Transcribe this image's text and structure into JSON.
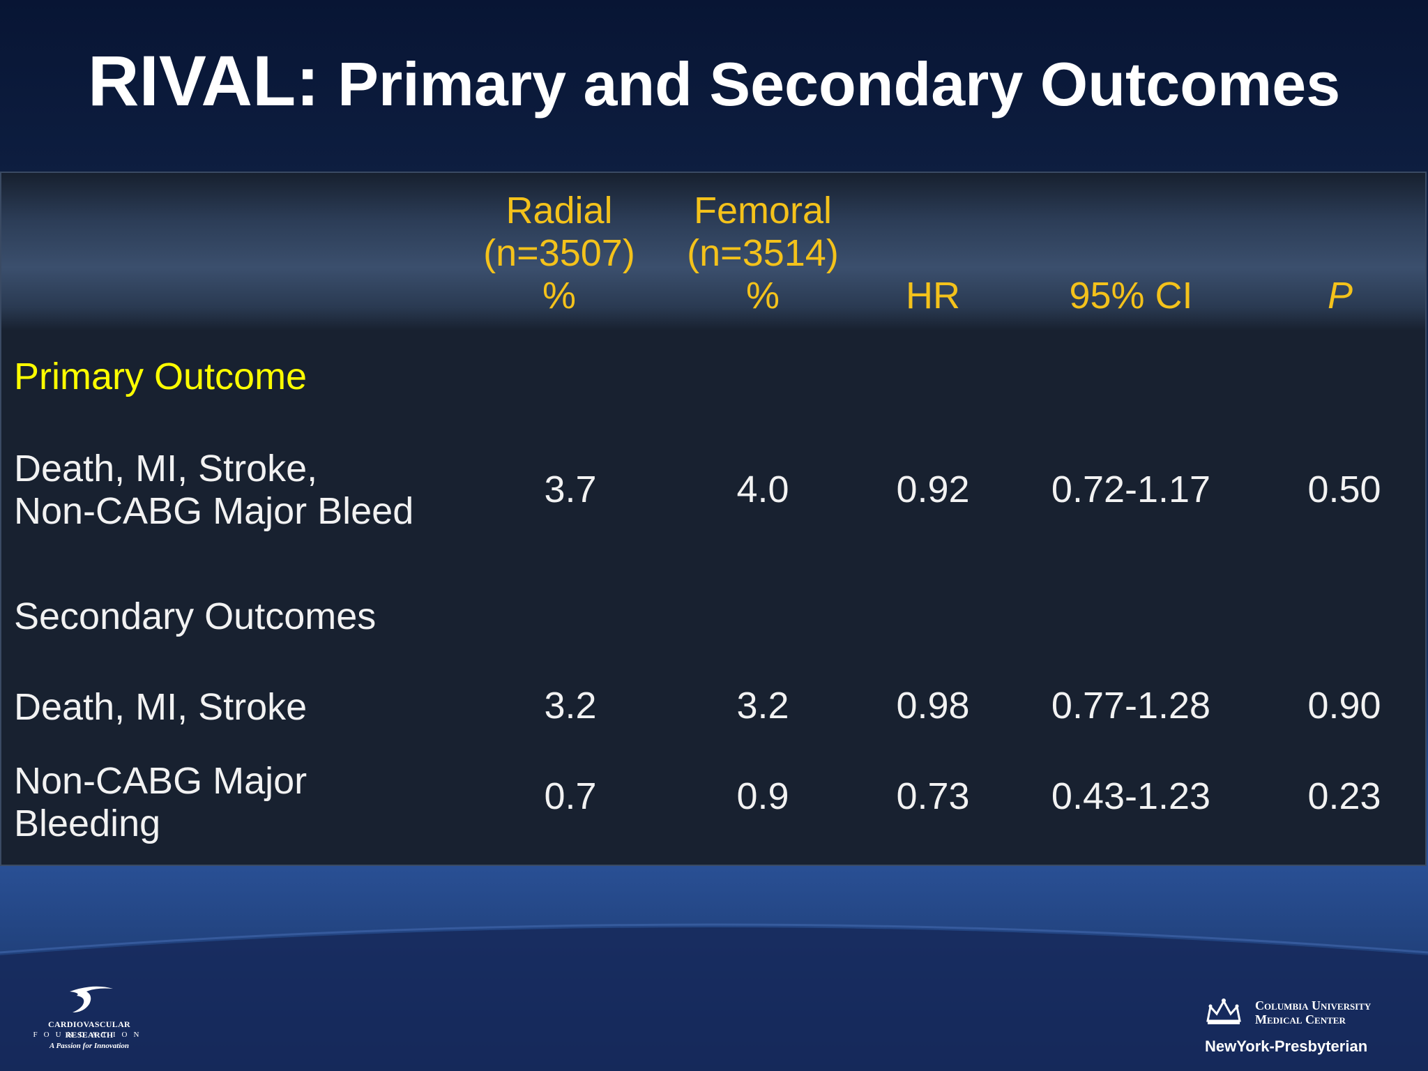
{
  "slide": {
    "title_main": "RIVAL:",
    "title_sub": "Primary and Secondary Outcomes"
  },
  "table": {
    "headers": {
      "radial": [
        "Radial",
        "(n=3507)",
        "%"
      ],
      "femoral": [
        "Femoral",
        "(n=3514)",
        "%"
      ],
      "hr": "HR",
      "ci": "95% CI",
      "p": "P"
    },
    "section_primary": "Primary Outcome",
    "section_secondary": "Secondary Outcomes",
    "rows": [
      {
        "label": [
          "Death, MI, Stroke,",
          "Non-CABG Major Bleed"
        ],
        "radial": "3.7",
        "femoral": "4.0",
        "hr": "0.92",
        "ci": "0.72-1.17",
        "p": "0.50"
      },
      {
        "label": [
          "Death, MI, Stroke"
        ],
        "radial": "3.2",
        "femoral": "3.2",
        "hr": "0.98",
        "ci": "0.77-1.28",
        "p": "0.90"
      },
      {
        "label": [
          "Non-CABG Major",
          "Bleeding"
        ],
        "radial": "0.7",
        "femoral": "0.9",
        "hr": "0.73",
        "ci": "0.43-1.23",
        "p": "0.23"
      }
    ]
  },
  "colors": {
    "header_text": "#f4c21b",
    "section_primary": "#ffff00",
    "body_text": "#f2f2f2"
  },
  "logos": {
    "crf": {
      "line1": "CARDIOVASCULAR RESEARCH",
      "line2": "FOUNDATION",
      "tagline": "A Passion for Innovation"
    },
    "columbia": {
      "line1": "Columbia University",
      "line2": "Medical Center",
      "line3": "NewYork-Presbyterian"
    }
  }
}
